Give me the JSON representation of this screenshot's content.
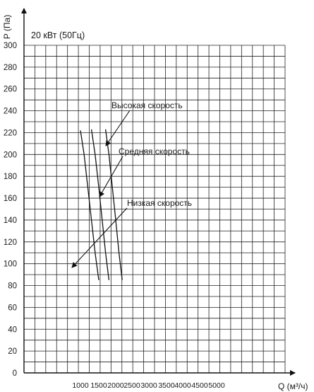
{
  "chart_data": {
    "type": "line",
    "subtitle": "20 кВт (50Гц)",
    "xlabel": "Q (м³/ч)",
    "ylabel": "P (Па)",
    "ylim": [
      0,
      300
    ],
    "y_ticks": [
      0,
      20,
      40,
      60,
      80,
      100,
      120,
      140,
      160,
      180,
      200,
      220,
      240,
      260,
      280,
      300
    ],
    "x_ticks": [
      1000,
      1500,
      2000,
      2500,
      3000,
      3500,
      4000,
      4500,
      5000
    ],
    "x_tick_labels": [
      "1000",
      "1500",
      "2000",
      "2500",
      "3000",
      "3500",
      "4000",
      "4500",
      "5000"
    ],
    "grid": true,
    "series": [
      {
        "name": "Низкая скорость",
        "points": [
          [
            1000,
            222
          ],
          [
            1100,
            200
          ],
          [
            1200,
            170
          ],
          [
            1300,
            140
          ],
          [
            1400,
            110
          ],
          [
            1500,
            85
          ]
        ]
      },
      {
        "name": "Средняя скорость",
        "points": [
          [
            1300,
            223
          ],
          [
            1400,
            200
          ],
          [
            1500,
            170
          ],
          [
            1600,
            140
          ],
          [
            1700,
            110
          ],
          [
            1800,
            85
          ]
        ]
      },
      {
        "name": "Высокая скорость",
        "points": [
          [
            1700,
            223
          ],
          [
            1800,
            200
          ],
          [
            1900,
            170
          ],
          [
            2000,
            140
          ],
          [
            2100,
            110
          ],
          [
            2200,
            85
          ]
        ]
      }
    ],
    "annotations": [
      {
        "text": "Высокая скорость",
        "series": "Высокая скорость"
      },
      {
        "text": "Средняя скорость",
        "series": "Средняя скорость"
      },
      {
        "text": "Низкая скорость",
        "series": "Низкая скорость"
      }
    ]
  }
}
